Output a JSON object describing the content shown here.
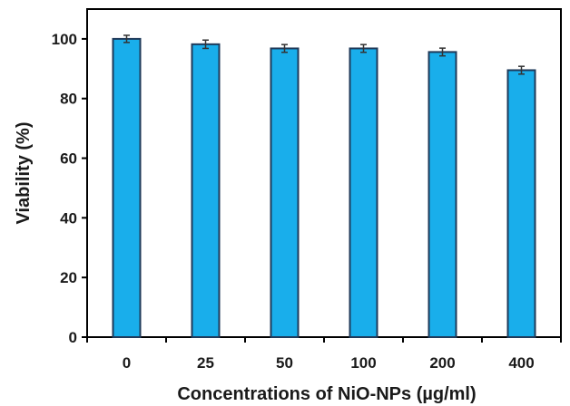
{
  "chart_data": {
    "type": "bar",
    "title": "",
    "xlabel": "Concentrations of NiO-NPs (µg/ml)",
    "ylabel": "Viability (%)",
    "categories": [
      "0",
      "25",
      "50",
      "100",
      "200",
      "400"
    ],
    "values": [
      100,
      98.2,
      96.8,
      96.8,
      95.6,
      89.5
    ],
    "errors": [
      1.2,
      1.4,
      1.3,
      1.3,
      1.3,
      1.3
    ],
    "ylim": [
      0,
      110
    ],
    "yticks": [
      "0",
      "20",
      "40",
      "60",
      "80",
      "100"
    ],
    "grid": false,
    "legend": "none",
    "colors": {
      "bar_fill": "#19AEEB",
      "bar_stroke": "#1f3a5a",
      "axis": "#000000",
      "error_bar": "#333333"
    }
  }
}
